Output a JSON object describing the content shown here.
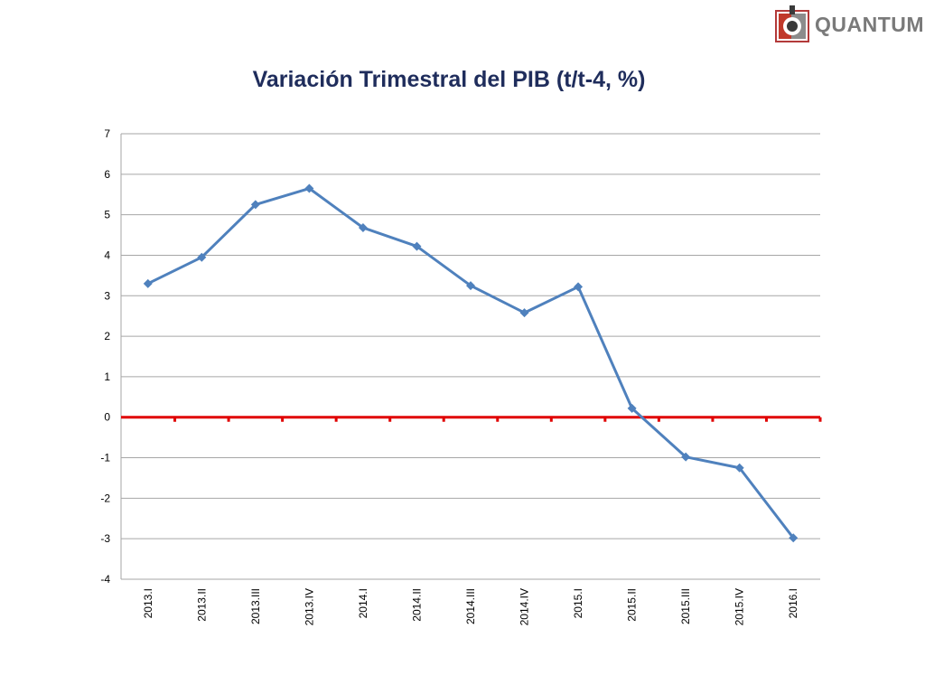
{
  "logo": {
    "text": "QUANTUM"
  },
  "chart_data": {
    "type": "line",
    "title": "Variación Trimestral del PIB (t/t-4, %)",
    "xlabel": "",
    "ylabel": "",
    "categories": [
      "2013.I",
      "2013.II",
      "2013.III",
      "2013.IV",
      "2014.I",
      "2014.II",
      "2014.III",
      "2014.IV",
      "2015.I",
      "2015.II",
      "2015.III",
      "2015.IV",
      "2016.I"
    ],
    "series": [
      {
        "values": [
          3.3,
          3.95,
          5.25,
          5.65,
          4.68,
          4.22,
          3.25,
          2.58,
          3.22,
          0.22,
          -0.98,
          -1.25,
          -2.98
        ]
      }
    ],
    "ylim": [
      -4,
      7
    ],
    "yticks": [
      7,
      6,
      5,
      4,
      3,
      2,
      1,
      0,
      -1,
      -2,
      -3,
      -4
    ],
    "grid": true,
    "legend": "none",
    "colors": {
      "series": "#4f81bd",
      "zero_line": "#e00000",
      "grid": "#a6a6a6",
      "title": "#1f2d5c"
    }
  }
}
